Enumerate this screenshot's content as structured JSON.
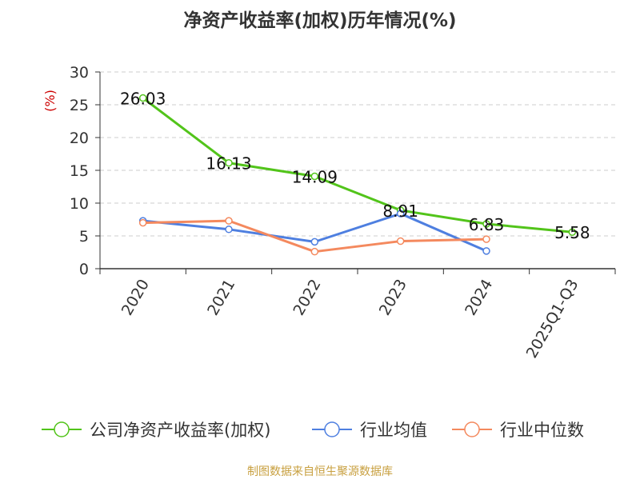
{
  "chart_data": {
    "type": "line",
    "title": "净资产收益率(加权)历年情况(%)",
    "ylabel": "(%)",
    "ylim": [
      0,
      30
    ],
    "yticks": [
      0,
      5,
      10,
      15,
      20,
      25,
      30
    ],
    "grid": true,
    "legend_position": "bottom",
    "categories": [
      "2020",
      "2021",
      "2022",
      "2023",
      "2024",
      "2025Q1-Q3"
    ],
    "series": [
      {
        "name": "公司净资产收益率(加权)",
        "color": "#52c41a",
        "values": [
          26.03,
          16.13,
          14.09,
          8.91,
          6.83,
          5.58
        ],
        "labels": [
          "26.03",
          "16.13",
          "14.09",
          "8.91",
          "6.83",
          "5.58"
        ]
      },
      {
        "name": "行业均值",
        "color": "#4e7fe0",
        "values": [
          7.3,
          6.0,
          4.1,
          8.4,
          2.7,
          null
        ]
      },
      {
        "name": "行业中位数",
        "color": "#f4895e",
        "values": [
          7.0,
          7.3,
          2.6,
          4.2,
          4.5,
          null
        ]
      }
    ]
  },
  "source_note": "制图数据来自恒生聚源数据库",
  "colors": {
    "title": "#333333",
    "axis": "#333333",
    "ylabel": "#cc0000",
    "grid": "#cccccc",
    "source": "#c8a040"
  }
}
